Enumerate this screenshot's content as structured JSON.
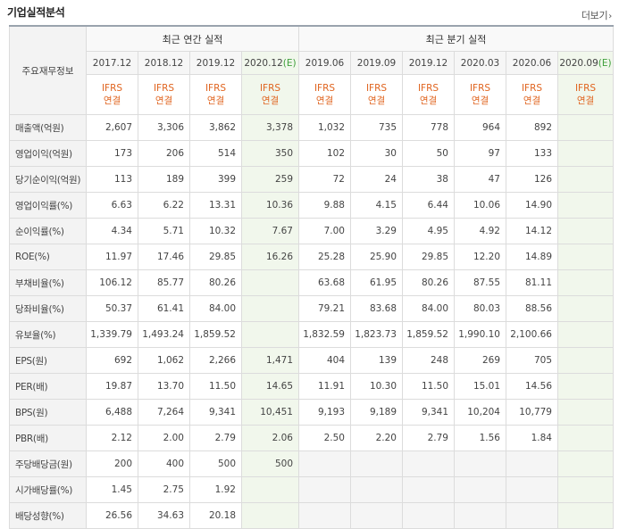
{
  "header": {
    "title": "기업실적분석",
    "more_label": "더보기"
  },
  "table": {
    "corner_label": "주요재무정보",
    "annual_group": "최근 연간 실적",
    "quarter_group": "최근 분기 실적",
    "annual_periods": [
      {
        "main": "2017.12",
        "est": ""
      },
      {
        "main": "2018.12",
        "est": ""
      },
      {
        "main": "2019.12",
        "est": ""
      },
      {
        "main": "2020.12",
        "est": "(E)"
      }
    ],
    "quarter_periods": [
      {
        "main": "2019.06",
        "est": ""
      },
      {
        "main": "2019.09",
        "est": ""
      },
      {
        "main": "2019.12",
        "est": ""
      },
      {
        "main": "2020.03",
        "est": ""
      },
      {
        "main": "2020.06",
        "est": ""
      },
      {
        "main": "2020.09",
        "est": "(E)"
      }
    ],
    "std_top": "IFRS",
    "std_bottom": "연결",
    "rows": [
      {
        "label": "매출액(억원)",
        "values": [
          "2,607",
          "3,306",
          "3,862",
          "3,378",
          "1,032",
          "735",
          "778",
          "964",
          "892",
          ""
        ]
      },
      {
        "label": "영업이익(억원)",
        "values": [
          "173",
          "206",
          "514",
          "350",
          "102",
          "30",
          "50",
          "97",
          "133",
          ""
        ]
      },
      {
        "label": "당기순이익(억원)",
        "values": [
          "113",
          "189",
          "399",
          "259",
          "72",
          "24",
          "38",
          "47",
          "126",
          ""
        ]
      },
      {
        "label": "영업이익률(%)",
        "values": [
          "6.63",
          "6.22",
          "13.31",
          "10.36",
          "9.88",
          "4.15",
          "6.44",
          "10.06",
          "14.90",
          ""
        ]
      },
      {
        "label": "순이익률(%)",
        "values": [
          "4.34",
          "5.71",
          "10.32",
          "7.67",
          "7.00",
          "3.29",
          "4.95",
          "4.92",
          "14.12",
          ""
        ]
      },
      {
        "label": "ROE(%)",
        "values": [
          "11.97",
          "17.46",
          "29.85",
          "16.26",
          "25.28",
          "25.90",
          "29.85",
          "12.20",
          "14.89",
          ""
        ]
      },
      {
        "label": "부채비율(%)",
        "values": [
          "106.12",
          "85.77",
          "80.26",
          "",
          "63.68",
          "61.95",
          "80.26",
          "87.55",
          "81.11",
          ""
        ]
      },
      {
        "label": "당좌비율(%)",
        "values": [
          "50.37",
          "61.41",
          "84.00",
          "",
          "79.21",
          "83.68",
          "84.00",
          "80.03",
          "88.56",
          ""
        ]
      },
      {
        "label": "유보율(%)",
        "values": [
          "1,339.79",
          "1,493.24",
          "1,859.52",
          "",
          "1,832.59",
          "1,823.73",
          "1,859.52",
          "1,990.10",
          "2,100.66",
          ""
        ]
      },
      {
        "label": "EPS(원)",
        "values": [
          "692",
          "1,062",
          "2,266",
          "1,471",
          "404",
          "139",
          "248",
          "269",
          "705",
          ""
        ]
      },
      {
        "label": "PER(배)",
        "values": [
          "19.87",
          "13.70",
          "11.50",
          "14.65",
          "11.91",
          "10.30",
          "11.50",
          "15.01",
          "14.56",
          ""
        ]
      },
      {
        "label": "BPS(원)",
        "values": [
          "6,488",
          "7,264",
          "9,341",
          "10,451",
          "9,193",
          "9,189",
          "9,341",
          "10,204",
          "10,779",
          ""
        ]
      },
      {
        "label": "PBR(배)",
        "values": [
          "2.12",
          "2.00",
          "2.79",
          "2.06",
          "2.50",
          "2.20",
          "2.79",
          "1.56",
          "1.84",
          ""
        ]
      },
      {
        "label": "주당배당금(원)",
        "values": [
          "200",
          "400",
          "500",
          "500",
          "",
          "",
          "",
          "",
          "",
          ""
        ]
      },
      {
        "label": "시가배당률(%)",
        "values": [
          "1.45",
          "2.75",
          "1.92",
          "",
          "",
          "",
          "",
          "",
          "",
          ""
        ]
      },
      {
        "label": "배당성향(%)",
        "values": [
          "26.56",
          "34.63",
          "20.18",
          "",
          "",
          "",
          "",
          "",
          "",
          ""
        ]
      }
    ]
  }
}
